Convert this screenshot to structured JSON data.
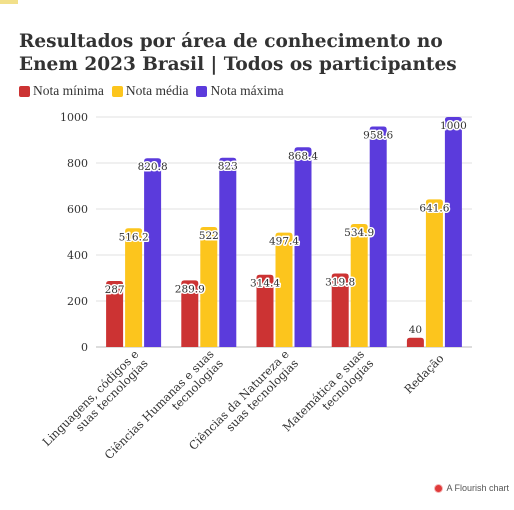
{
  "chart_data": {
    "type": "bar",
    "title": "Resultados por área de conhecimento no Enem 2023 Brasil | Todos os participantes",
    "categories": [
      "Linguagens, códigos e suas tecnologias",
      "Ciências Humanas e suas tecnologias",
      "Ciências da Natureza e suas tecnologias",
      "Matemática e suas tecnologias",
      "Redação"
    ],
    "series": [
      {
        "name": "Nota mínima",
        "color": "#cc3333",
        "values": [
          287,
          289.9,
          314.4,
          319.8,
          40
        ]
      },
      {
        "name": "Nota média",
        "color": "#fcc51d",
        "values": [
          516.2,
          522,
          497.4,
          534.9,
          641.6
        ]
      },
      {
        "name": "Nota máxima",
        "color": "#5b3bdc",
        "values": [
          820.8,
          823,
          868.4,
          958.6,
          1000
        ]
      }
    ],
    "data_labels": [
      [
        "287",
        "289.9",
        "314.4",
        "319.8",
        "40"
      ],
      [
        "516.2",
        "522",
        "497.4",
        "534.9",
        "641.6"
      ],
      [
        "820.8",
        "823",
        "868.4",
        "958.6",
        "1000"
      ]
    ],
    "yticks": [
      "0",
      "200",
      "400",
      "600",
      "800",
      "1000"
    ],
    "ylim": [
      0,
      1000
    ],
    "grid": true,
    "legend_position": "top-left"
  },
  "footer": {
    "credit": "A Flourish chart"
  }
}
